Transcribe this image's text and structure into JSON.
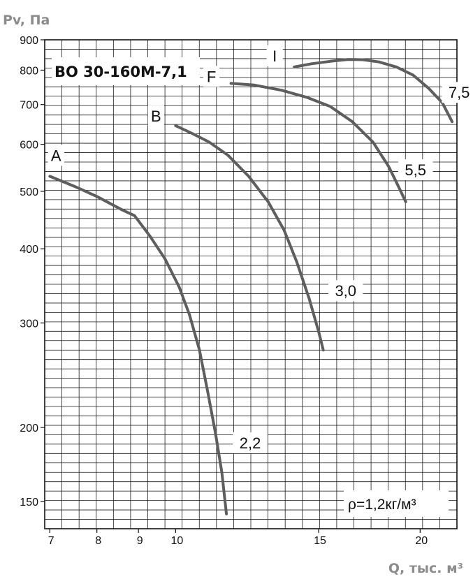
{
  "chart_data": {
    "type": "line",
    "title": "ВО 30-160М-7,1",
    "ylabel": "Pv, Па",
    "xlabel": "Q, тыс. м³",
    "annotation": "ρ=1,2кг/м³",
    "x_scale": "log",
    "y_scale": "log",
    "xlim": [
      6.9,
      22.2
    ],
    "ylim": [
      135,
      900
    ],
    "x_ticks": [
      {
        "value": 7,
        "label": "7"
      },
      {
        "value": 8,
        "label": "8"
      },
      {
        "value": 9,
        "label": "9"
      },
      {
        "value": 10,
        "label": "10"
      },
      {
        "value": 15,
        "label": "15"
      },
      {
        "value": 20,
        "label": "20"
      }
    ],
    "y_ticks": [
      {
        "value": 900,
        "label": "900"
      },
      {
        "value": 800,
        "label": "800"
      },
      {
        "value": 700,
        "label": "700"
      },
      {
        "value": 600,
        "label": "600"
      },
      {
        "value": 500,
        "label": "500"
      },
      {
        "value": 400,
        "label": "400"
      },
      {
        "value": 300,
        "label": "300"
      },
      {
        "value": 200,
        "label": "200"
      },
      {
        "value": 150,
        "label": "150"
      }
    ],
    "grid": true,
    "series": [
      {
        "name": "A",
        "end_label": "2,2",
        "points": [
          [
            7.0,
            530
          ],
          [
            7.5,
            510
          ],
          [
            8.0,
            490
          ],
          [
            8.6,
            465
          ],
          [
            8.9,
            455
          ],
          [
            9.3,
            420
          ],
          [
            9.7,
            385
          ],
          [
            10.1,
            345
          ],
          [
            10.4,
            310
          ],
          [
            10.7,
            270
          ],
          [
            10.95,
            230
          ],
          [
            11.2,
            195
          ],
          [
            11.4,
            168
          ],
          [
            11.55,
            143
          ]
        ]
      },
      {
        "name": "B",
        "end_label": "3,0",
        "points": [
          [
            10.0,
            645
          ],
          [
            10.5,
            625
          ],
          [
            11.0,
            605
          ],
          [
            11.6,
            575
          ],
          [
            12.3,
            530
          ],
          [
            13.0,
            480
          ],
          [
            13.6,
            430
          ],
          [
            14.1,
            380
          ],
          [
            14.6,
            330
          ],
          [
            15.0,
            290
          ],
          [
            15.2,
            270
          ]
        ]
      },
      {
        "name": "F",
        "end_label": "5,5",
        "points": [
          [
            11.7,
            760
          ],
          [
            12.5,
            755
          ],
          [
            13.5,
            740
          ],
          [
            14.5,
            720
          ],
          [
            15.5,
            695
          ],
          [
            16.5,
            655
          ],
          [
            17.5,
            605
          ],
          [
            18.3,
            550
          ],
          [
            18.8,
            510
          ],
          [
            19.2,
            480
          ]
        ]
      },
      {
        "name": "I",
        "end_label": "7,5",
        "points": [
          [
            14.0,
            810
          ],
          [
            14.7,
            820
          ],
          [
            15.5,
            828
          ],
          [
            16.3,
            834
          ],
          [
            17.0,
            833
          ],
          [
            17.8,
            826
          ],
          [
            18.7,
            810
          ],
          [
            19.6,
            785
          ],
          [
            20.5,
            745
          ],
          [
            21.3,
            705
          ],
          [
            21.9,
            655
          ]
        ]
      }
    ]
  }
}
